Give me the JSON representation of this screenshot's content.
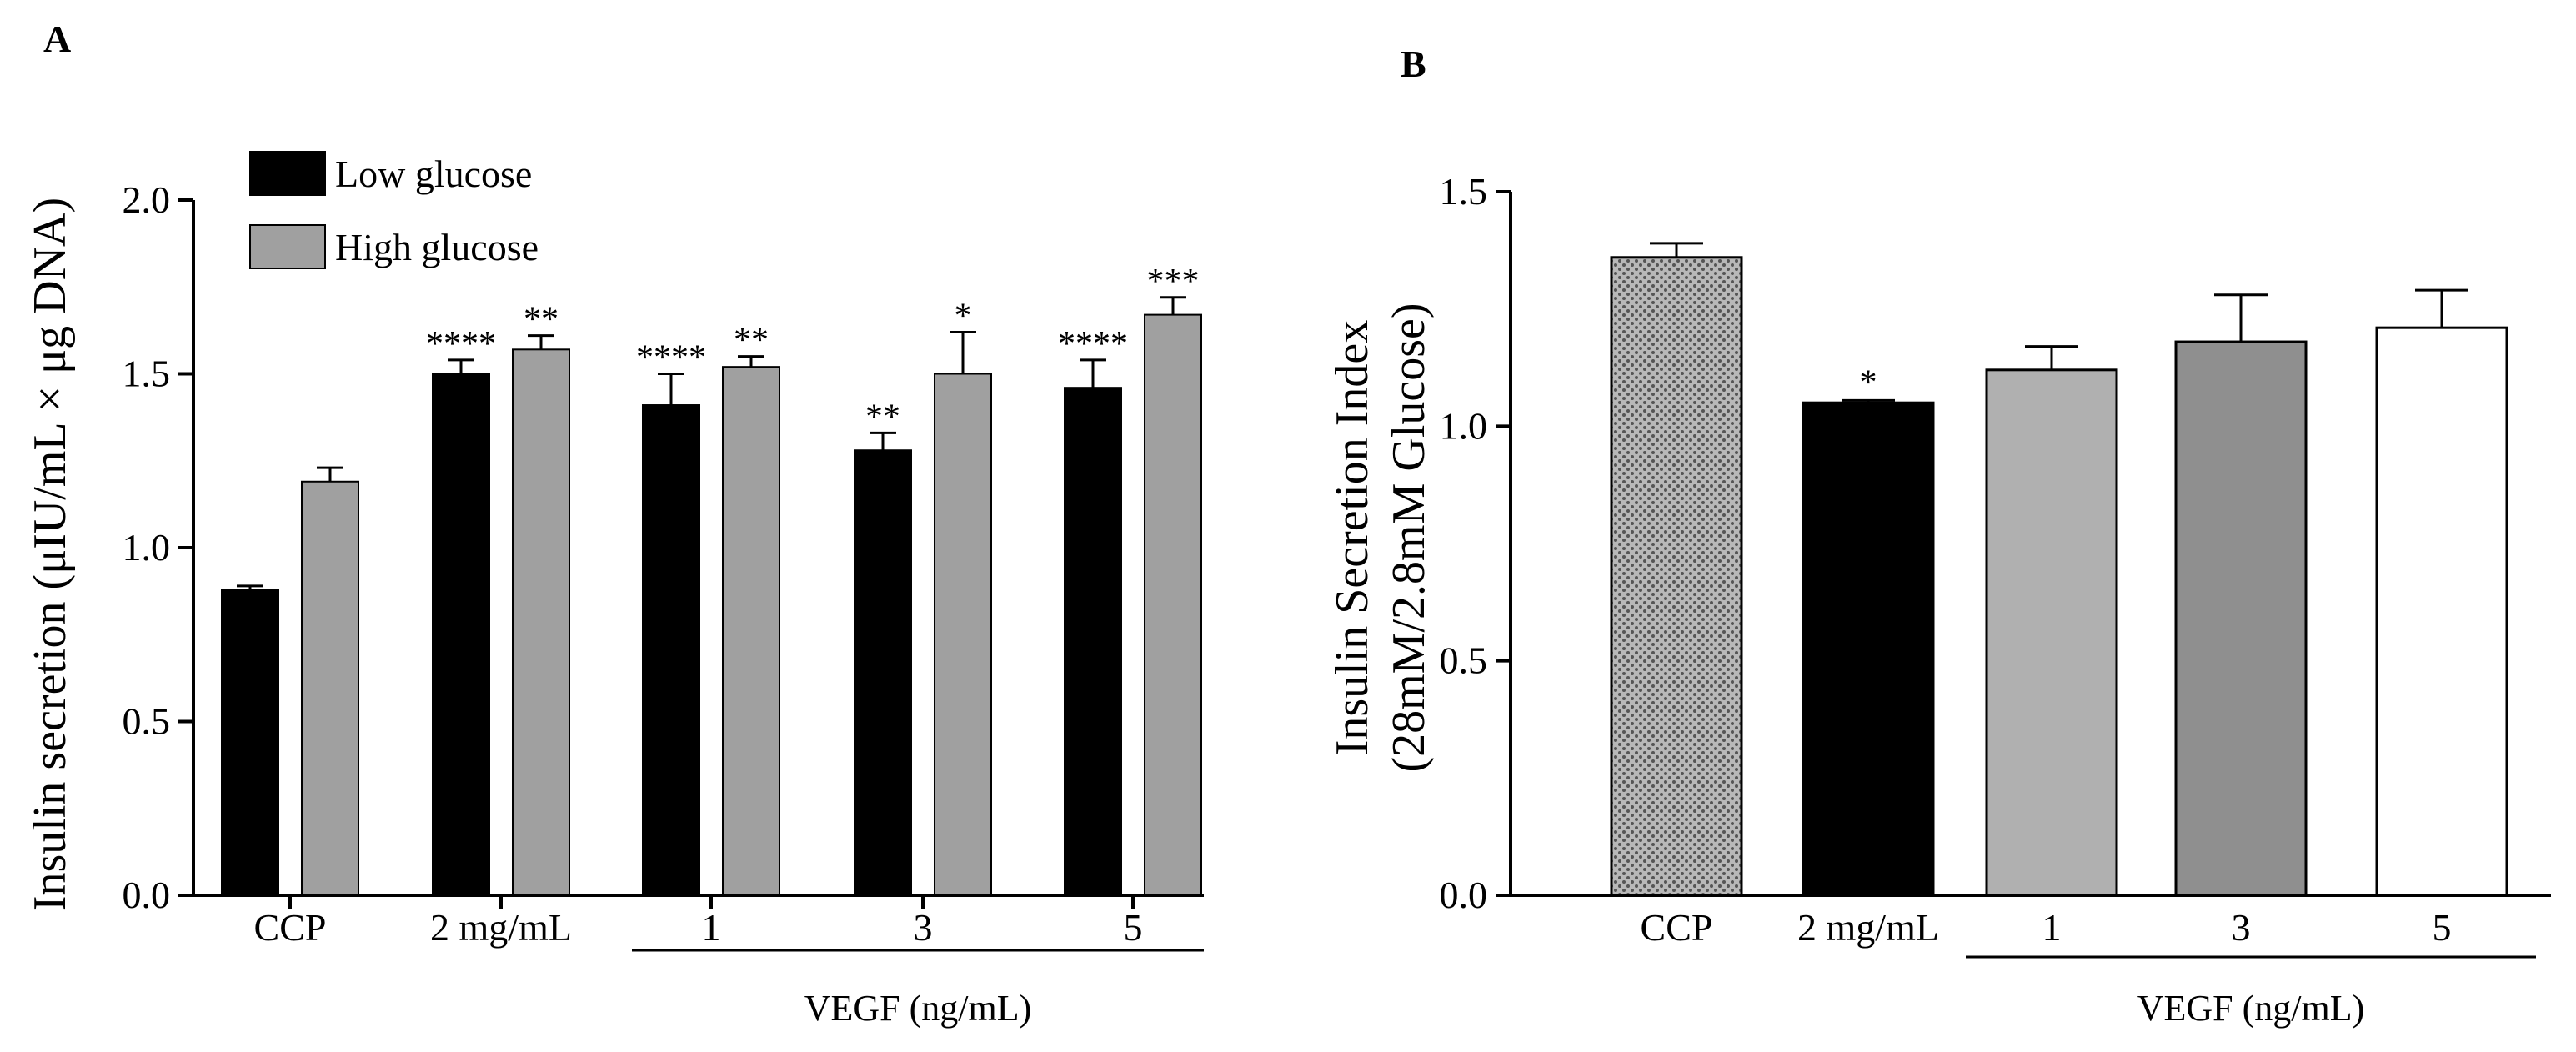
{
  "chart_data": [
    {
      "panel_label": "A",
      "type": "bar",
      "ylabel": "Insulin secretion (μIU/mL × μg DNA)",
      "ylim": [
        0,
        2.0
      ],
      "yticks": [
        "0.0",
        "0.5",
        "1.0",
        "1.5",
        "2.0"
      ],
      "categories": [
        "CCP",
        "2 mg/mL",
        "1",
        "3",
        "5"
      ],
      "group_label": "VEGF (ng/mL)",
      "legend_position": "top-left",
      "series": [
        {
          "name": "Low glucose",
          "color": "#000000",
          "values": [
            0.88,
            1.5,
            1.41,
            1.28,
            1.46
          ],
          "errors": [
            0.01,
            0.04,
            0.09,
            0.05,
            0.08
          ],
          "significance": [
            "",
            "****",
            "****",
            "**",
            "****"
          ]
        },
        {
          "name": "High glucose",
          "color": "#a0a0a0",
          "values": [
            1.19,
            1.57,
            1.52,
            1.5,
            1.67
          ],
          "errors": [
            0.04,
            0.04,
            0.03,
            0.12,
            0.05
          ],
          "significance": [
            "",
            "**",
            "**",
            "*",
            "***"
          ]
        }
      ]
    },
    {
      "panel_label": "B",
      "type": "bar",
      "ylabel": [
        "Insulin Secretion Index",
        "(28mM/2.8mM Glucose)"
      ],
      "ylim": [
        0,
        1.5
      ],
      "yticks": [
        "0.0",
        "0.5",
        "1.0",
        "1.5"
      ],
      "categories": [
        "CCP",
        "2 mg/mL",
        "1",
        "3",
        "5"
      ],
      "group_label": "VEGF (ng/mL)",
      "values": [
        1.36,
        1.05,
        1.12,
        1.18,
        1.21
      ],
      "errors": [
        0.03,
        0.005,
        0.05,
        0.1,
        0.08
      ],
      "significance": [
        "",
        "*",
        "",
        "",
        ""
      ],
      "colors": [
        "#b8b8b8",
        "#000000",
        "#b0b0b0",
        "#8f8f8f",
        "#ffffff"
      ],
      "patterns": [
        "dotted",
        "solid",
        "solid",
        "solid",
        "solid"
      ]
    }
  ]
}
